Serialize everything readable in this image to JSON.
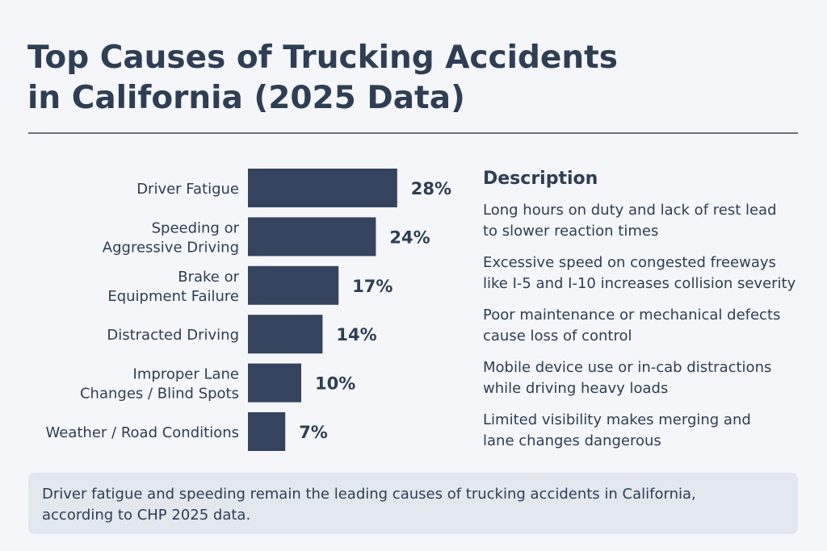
{
  "chart_data": {
    "type": "bar",
    "orientation": "horizontal",
    "title": "Top Causes of Trucking Accidents\nin California (2025 Data)",
    "categories": [
      "Driver Fatigue",
      "Speeding or\nAggressive Driving",
      "Brake or\nEquipment Failure",
      "Distracted Driving",
      "Improper Lane\nChanges / Blind Spots",
      "Weather / Road Conditions"
    ],
    "values": [
      28,
      24,
      17,
      14,
      10,
      7
    ],
    "value_labels": [
      "28%",
      "24%",
      "17%",
      "14%",
      "10%",
      "7%"
    ],
    "color": "#34445e"
  },
  "description": {
    "heading": "Description",
    "items": [
      "Long hours on duty and lack of rest lead\nto slower reaction times",
      "Excessive speed on congested freeways\nlike I-5 and I-10 increases collision severity",
      "Poor maintenance or mechanical defects\ncause loss of control",
      "Mobile device use or in-cab distractions\nwhile driving heavy loads",
      "Limited visibility makes merging and\nlane changes dangerous"
    ]
  },
  "footnote": "Driver fatigue and speeding remain the leading causes of trucking accidents in California,\naccording to CHP 2025 data."
}
